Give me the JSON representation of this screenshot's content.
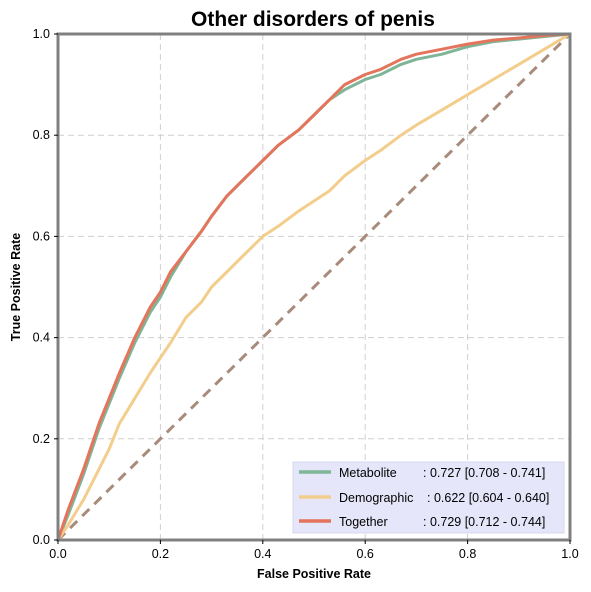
{
  "chart_data": {
    "type": "line",
    "title": "Other disorders of penis",
    "xlabel": "False Positive Rate",
    "ylabel": "True Positive Rate",
    "xlim": [
      0,
      1
    ],
    "ylim": [
      0,
      1
    ],
    "xticks": [
      "0.0",
      "0.2",
      "0.4",
      "0.6",
      "0.8",
      "1.0"
    ],
    "yticks": [
      "0.0",
      "0.2",
      "0.4",
      "0.6",
      "0.8",
      "1.0"
    ],
    "grid": true,
    "legend_position": "bottom-right",
    "legend_bg": "#e6e6fa",
    "reference_line": {
      "x": [
        0,
        1
      ],
      "y": [
        0,
        1
      ],
      "color": "#a88b7a",
      "style": "dashed"
    },
    "series": [
      {
        "name": "Metabolite",
        "label_name": "Metabolite",
        "label_stats": ": 0.727 [0.708 - 0.741]",
        "color": "#7fb597",
        "x": [
          0,
          0.02,
          0.05,
          0.08,
          0.1,
          0.12,
          0.15,
          0.18,
          0.2,
          0.22,
          0.25,
          0.28,
          0.3,
          0.33,
          0.36,
          0.4,
          0.43,
          0.47,
          0.5,
          0.53,
          0.56,
          0.6,
          0.63,
          0.67,
          0.7,
          0.75,
          0.8,
          0.85,
          0.9,
          0.95,
          1.0
        ],
        "y": [
          0,
          0.05,
          0.13,
          0.22,
          0.27,
          0.32,
          0.39,
          0.45,
          0.48,
          0.52,
          0.57,
          0.61,
          0.64,
          0.68,
          0.71,
          0.75,
          0.78,
          0.81,
          0.84,
          0.87,
          0.89,
          0.91,
          0.92,
          0.94,
          0.95,
          0.96,
          0.975,
          0.985,
          0.99,
          0.995,
          1.0
        ]
      },
      {
        "name": "Demographic",
        "label_name": "Demographic",
        "label_stats": ": 0.622 [0.604 - 0.640]",
        "color": "#f3cd8b",
        "x": [
          0,
          0.02,
          0.05,
          0.08,
          0.1,
          0.12,
          0.15,
          0.18,
          0.2,
          0.22,
          0.25,
          0.28,
          0.3,
          0.33,
          0.36,
          0.4,
          0.43,
          0.47,
          0.5,
          0.53,
          0.56,
          0.6,
          0.63,
          0.67,
          0.7,
          0.75,
          0.8,
          0.85,
          0.9,
          0.95,
          1.0
        ],
        "y": [
          0,
          0.03,
          0.08,
          0.14,
          0.18,
          0.23,
          0.28,
          0.33,
          0.36,
          0.39,
          0.44,
          0.47,
          0.5,
          0.53,
          0.56,
          0.6,
          0.62,
          0.65,
          0.67,
          0.69,
          0.72,
          0.75,
          0.77,
          0.8,
          0.82,
          0.85,
          0.88,
          0.91,
          0.94,
          0.97,
          1.0
        ]
      },
      {
        "name": "Together",
        "label_name": "Together",
        "label_stats": ": 0.729 [0.712 - 0.744]",
        "color": "#e4755c",
        "x": [
          0,
          0.02,
          0.05,
          0.08,
          0.1,
          0.12,
          0.15,
          0.18,
          0.2,
          0.22,
          0.25,
          0.28,
          0.3,
          0.33,
          0.36,
          0.4,
          0.43,
          0.47,
          0.5,
          0.53,
          0.56,
          0.6,
          0.63,
          0.67,
          0.7,
          0.75,
          0.8,
          0.85,
          0.9,
          0.95,
          1.0
        ],
        "y": [
          0,
          0.06,
          0.14,
          0.23,
          0.28,
          0.33,
          0.4,
          0.46,
          0.49,
          0.53,
          0.57,
          0.61,
          0.64,
          0.68,
          0.71,
          0.75,
          0.78,
          0.81,
          0.84,
          0.87,
          0.9,
          0.92,
          0.93,
          0.95,
          0.96,
          0.97,
          0.98,
          0.988,
          0.992,
          0.997,
          1.0
        ]
      }
    ]
  }
}
